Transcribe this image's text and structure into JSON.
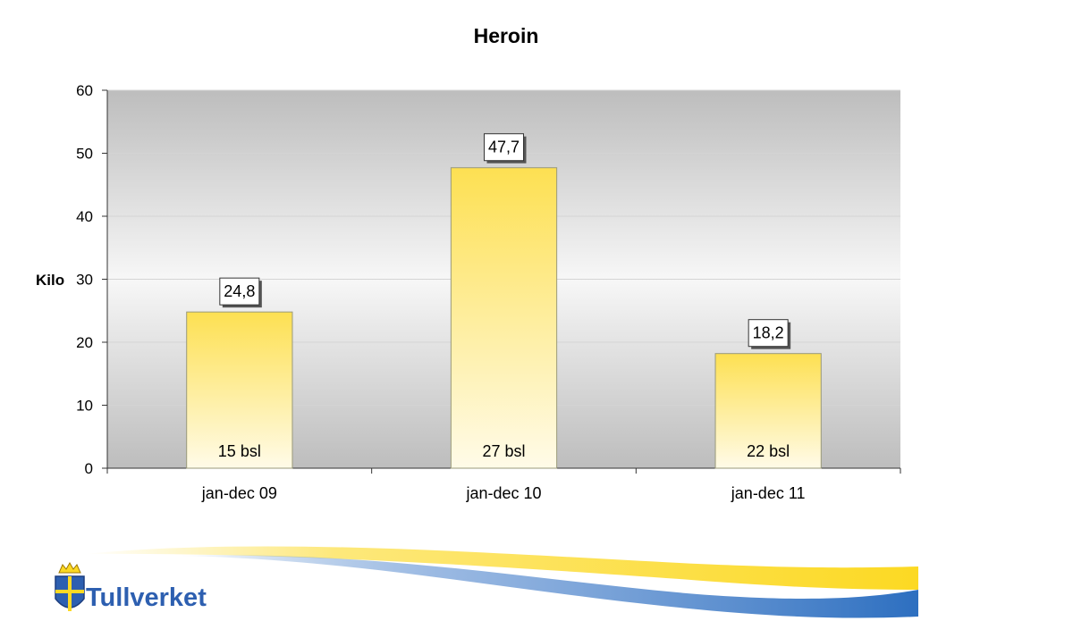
{
  "chart_data": {
    "type": "bar",
    "title": "Heroin",
    "ylabel": "Kilo",
    "xlabel": "",
    "categories": [
      "jan-dec 09",
      "jan-dec 10",
      "jan-dec 11"
    ],
    "values": [
      24.8,
      47.7,
      18.2
    ],
    "value_labels": [
      "24,8",
      "47,7",
      "18,2"
    ],
    "bar_notes": [
      "15 bsl",
      "27 bsl",
      "22 bsl"
    ],
    "ylim": [
      0,
      60
    ],
    "yticks": [
      0,
      10,
      20,
      30,
      40,
      50,
      60
    ],
    "grid": true,
    "legend": "none",
    "colors": {
      "bar_top": "#fde052",
      "bar_bottom": "#fffbe8",
      "plot_top": "#bdbdbd",
      "plot_mid": "#f7f7f7",
      "plot_bottom": "#bdbdbd"
    }
  },
  "logo": {
    "text": "Tullverket",
    "icon": "coat-of-arms-icon",
    "colors": {
      "blue": "#2d5fb0",
      "yellow": "#fcd923"
    }
  }
}
